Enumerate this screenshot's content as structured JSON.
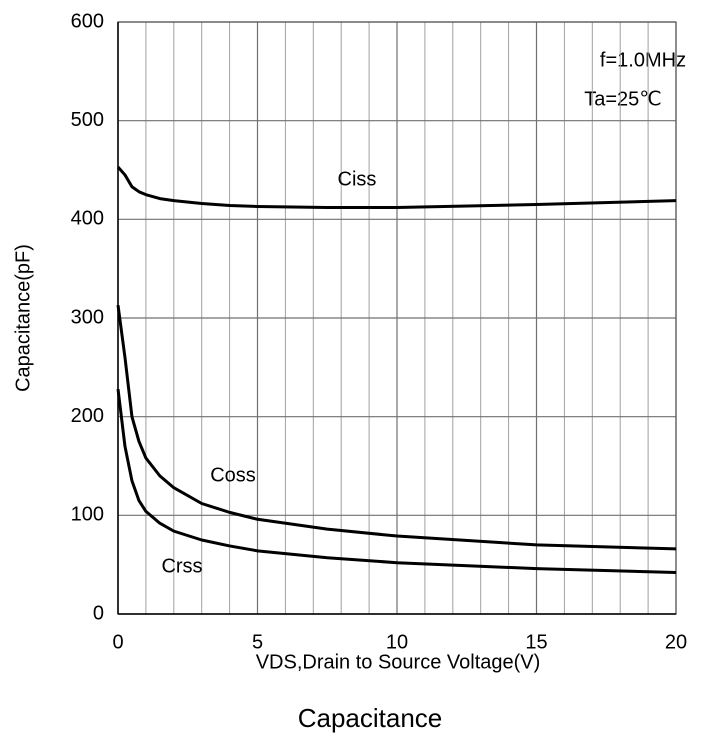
{
  "chart_data": {
    "type": "line",
    "title": "Capacitance",
    "xlabel": "VDS,Drain to Source Voltage(V)",
    "ylabel": "Capacitance(pF)",
    "annotations": [
      "f=1.0MHz",
      "Ta=25℃"
    ],
    "x": [
      0,
      0.25,
      0.5,
      0.75,
      1,
      1.5,
      2,
      3,
      4,
      5,
      7.5,
      10,
      15,
      20
    ],
    "series": [
      {
        "name": "Ciss",
        "color": "#000000",
        "values": [
          453,
          445,
          433,
          428,
          425,
          421,
          419,
          416,
          414,
          413,
          412,
          412,
          415,
          419
        ]
      },
      {
        "name": "Coss",
        "color": "#000000",
        "values": [
          313,
          260,
          200,
          175,
          158,
          140,
          128,
          112,
          103,
          96,
          86,
          79,
          70,
          66
        ]
      },
      {
        "name": "Crss",
        "color": "#000000",
        "values": [
          228,
          170,
          135,
          115,
          104,
          92,
          84,
          75,
          69,
          64,
          57,
          52,
          46,
          42
        ]
      }
    ],
    "xlim": [
      0,
      20
    ],
    "ylim": [
      0,
      600
    ],
    "xticks": [
      0,
      5,
      10,
      15,
      20
    ],
    "xminorticks": [
      1,
      2,
      3,
      4,
      6,
      7,
      8,
      9,
      11,
      12,
      13,
      14,
      16,
      17,
      18,
      19
    ],
    "yticks": [
      0,
      100,
      200,
      300,
      400,
      500,
      600
    ],
    "grid": true
  }
}
